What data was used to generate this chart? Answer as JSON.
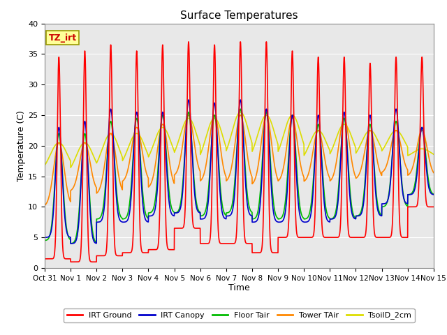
{
  "title": "Surface Temperatures",
  "xlabel": "Time",
  "ylabel": "Temperature (C)",
  "ylim": [
    0,
    40
  ],
  "annotation_text": "TZ_irt",
  "annotation_color": "#cc0000",
  "annotation_bg": "#ffff99",
  "annotation_border": "#999900",
  "series": {
    "IRT Ground": {
      "color": "#ff0000",
      "lw": 1.2
    },
    "IRT Canopy": {
      "color": "#0000cc",
      "lw": 1.2
    },
    "Floor Tair": {
      "color": "#00bb00",
      "lw": 1.2
    },
    "Tower TAir": {
      "color": "#ff8800",
      "lw": 1.2
    },
    "TsoilD_2cm": {
      "color": "#dddd00",
      "lw": 1.2
    }
  },
  "xtick_labels": [
    "Oct 31",
    "Nov 1",
    "Nov 2",
    "Nov 3",
    "Nov 4",
    "Nov 5",
    "Nov 6",
    "Nov 7",
    "Nov 8",
    "Nov 9",
    "Nov 10",
    "Nov 11",
    "Nov 12",
    "Nov 13",
    "Nov 14",
    "Nov 15"
  ],
  "xtick_positions": [
    0,
    1,
    2,
    3,
    4,
    5,
    6,
    7,
    8,
    9,
    10,
    11,
    12,
    13,
    14,
    15
  ],
  "ytick_positions": [
    0,
    5,
    10,
    15,
    20,
    25,
    30,
    35,
    40
  ],
  "bg_color": "#e8e8e8",
  "grid_color": "#ffffff",
  "points_per_day": 200,
  "num_days": 15,
  "daily_peaks": {
    "IRT Ground": [
      34.5,
      35.5,
      36.5,
      35.5,
      36.5,
      37.0,
      36.5,
      37.0,
      37.0,
      35.5,
      34.5,
      34.5,
      33.5,
      34.5,
      34.5
    ],
    "IRT Canopy": [
      23.0,
      24.0,
      26.0,
      25.5,
      25.5,
      27.5,
      27.0,
      27.5,
      26.0,
      25.0,
      25.0,
      25.5,
      25.0,
      26.0,
      23.0
    ],
    "Floor Tair": [
      22.0,
      22.0,
      24.0,
      24.5,
      25.0,
      25.5,
      25.0,
      26.0,
      25.5,
      25.0,
      23.5,
      24.5,
      23.5,
      24.0,
      23.0
    ],
    "Tower TAir": [
      20.5,
      20.5,
      22.0,
      23.0,
      23.5,
      25.0,
      25.0,
      25.0,
      25.0,
      24.5,
      22.5,
      24.5,
      22.5,
      22.5,
      22.5
    ],
    "TsoilD_2cm": [
      20.5,
      20.5,
      22.0,
      22.0,
      23.0,
      24.5,
      24.5,
      25.5,
      25.0,
      25.0,
      22.5,
      23.5,
      22.5,
      22.5,
      19.5
    ]
  },
  "daily_mins": {
    "IRT Ground": [
      1.5,
      1.0,
      2.0,
      2.5,
      3.0,
      6.5,
      4.0,
      4.0,
      2.5,
      5.0,
      5.0,
      5.0,
      5.0,
      5.0,
      10.0
    ],
    "IRT Canopy": [
      5.0,
      4.0,
      7.5,
      7.5,
      8.5,
      9.0,
      8.0,
      8.5,
      7.5,
      7.5,
      7.5,
      8.0,
      8.5,
      10.5,
      12.0
    ],
    "Floor Tair": [
      4.5,
      4.0,
      8.0,
      8.0,
      9.0,
      9.0,
      8.5,
      9.0,
      8.0,
      8.0,
      8.0,
      8.0,
      8.5,
      10.0,
      12.0
    ],
    "Tower TAir": [
      10.0,
      12.5,
      12.0,
      14.0,
      13.0,
      15.0,
      14.0,
      14.0,
      13.5,
      14.0,
      14.0,
      14.0,
      14.5,
      15.5,
      15.0
    ],
    "TsoilD_2cm": [
      15.5,
      15.0,
      15.5,
      16.0,
      16.5,
      17.0,
      16.5,
      17.0,
      17.0,
      17.0,
      17.0,
      17.0,
      17.5,
      18.0,
      18.0
    ]
  },
  "peak_sharpness": {
    "IRT Ground": 8.0,
    "IRT Canopy": 4.0,
    "Floor Tair": 3.5,
    "Tower TAir": 2.5,
    "TsoilD_2cm": 1.5
  }
}
